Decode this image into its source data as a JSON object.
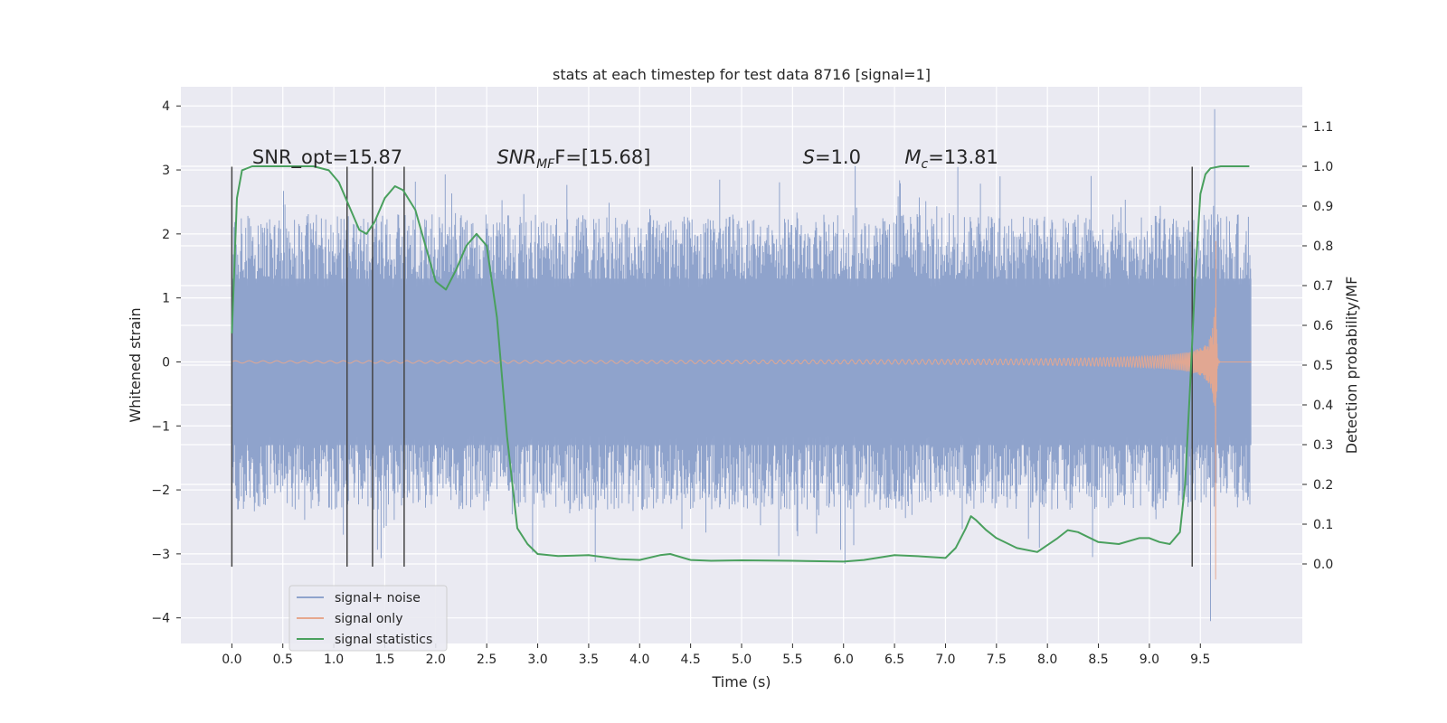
{
  "chart_data": {
    "type": "line",
    "title": "stats at each timestep for test data 8716 [signal=1]",
    "xlabel": "Time (s)",
    "ylabel": "Whitened strain",
    "y2label": "Detection probability/MF",
    "xlim": [
      -0.5,
      10.5
    ],
    "ylim": [
      -4.4,
      4.3
    ],
    "y2lim": [
      -0.2,
      1.2
    ],
    "x_ticks": [
      0.0,
      0.5,
      1.0,
      1.5,
      2.0,
      2.5,
      3.0,
      3.5,
      4.0,
      4.5,
      5.0,
      5.5,
      6.0,
      6.5,
      7.0,
      7.5,
      8.0,
      8.5,
      9.0,
      9.5
    ],
    "x_tick_labels": [
      "0.0",
      "0.5",
      "1.0",
      "1.5",
      "2.0",
      "2.5",
      "3.0",
      "3.5",
      "4.0",
      "4.5",
      "5.0",
      "5.5",
      "6.0",
      "6.5",
      "7.0",
      "7.5",
      "8.0",
      "8.5",
      "9.0",
      "9.5"
    ],
    "y_ticks": [
      -4,
      -3,
      -2,
      -1,
      0,
      1,
      2,
      3,
      4
    ],
    "y_tick_labels": [
      "−4",
      "−3",
      "−2",
      "−1",
      "0",
      "1",
      "2",
      "3",
      "4"
    ],
    "y2_ticks": [
      0.0,
      0.1,
      0.2,
      0.3,
      0.4,
      0.5,
      0.6,
      0.7,
      0.8,
      0.9,
      1.0,
      1.1
    ],
    "y2_tick_labels": [
      "0.0",
      "0.1",
      "0.2",
      "0.3",
      "0.4",
      "0.5",
      "0.6",
      "0.7",
      "0.8",
      "0.9",
      "1.0",
      "1.1"
    ],
    "grid": true,
    "legend_position": "lower-left",
    "annotations": [
      {
        "x": 0.2,
        "y": 3.1,
        "text": "SNR_opt=15.87"
      },
      {
        "x": 2.6,
        "y": 3.1,
        "main": "SNR",
        "sub": "MF",
        "rest": "F=[15.68]"
      },
      {
        "x": 5.6,
        "y": 3.1,
        "main": "S",
        "sub": "",
        "rest": "=1.0"
      },
      {
        "x": 6.6,
        "y": 3.1,
        "main": "M",
        "sub": "c",
        "rest": "=13.81"
      }
    ],
    "vlines": {
      "x": [
        0.0,
        1.13,
        1.38,
        1.69,
        9.42
      ],
      "ymin": -3.2,
      "ymax": 3.05
    },
    "series": [
      {
        "name": "signal+ noise",
        "color": "#8fa3cc",
        "kind": "noise-band",
        "x_range": [
          0.0,
          10.0
        ],
        "inner_amplitude": 1.3,
        "outer_amplitude_typical": 2.1,
        "peak_min": -4.05,
        "peak_max": 3.95
      },
      {
        "name": "signal only",
        "color": "#e6a88e",
        "kind": "chirp",
        "x_range": [
          0.0,
          10.0
        ],
        "merger_time": 9.65,
        "peak_amplitude": 2.4,
        "ringdown_min": -3.4
      },
      {
        "name": "signal statistics",
        "color": "#4aa05e",
        "kind": "line",
        "x": [
          0.0,
          0.05,
          0.1,
          0.2,
          0.4,
          0.6,
          0.8,
          0.95,
          1.05,
          1.15,
          1.25,
          1.32,
          1.4,
          1.5,
          1.6,
          1.68,
          1.8,
          1.9,
          2.0,
          2.1,
          2.2,
          2.3,
          2.4,
          2.5,
          2.6,
          2.7,
          2.8,
          2.9,
          3.0,
          3.2,
          3.5,
          3.8,
          4.0,
          4.2,
          4.3,
          4.5,
          4.7,
          5.0,
          5.5,
          6.0,
          6.2,
          6.5,
          6.7,
          7.0,
          7.1,
          7.2,
          7.25,
          7.3,
          7.4,
          7.5,
          7.7,
          7.9,
          8.1,
          8.2,
          8.3,
          8.5,
          8.7,
          8.9,
          9.0,
          9.1,
          9.2,
          9.3,
          9.35,
          9.4,
          9.45,
          9.5,
          9.55,
          9.6,
          9.7,
          9.8,
          9.98
        ],
        "y": [
          0.58,
          0.92,
          0.99,
          1.0,
          1.0,
          1.0,
          1.0,
          0.99,
          0.96,
          0.9,
          0.84,
          0.83,
          0.86,
          0.92,
          0.95,
          0.94,
          0.89,
          0.8,
          0.71,
          0.69,
          0.74,
          0.8,
          0.83,
          0.8,
          0.62,
          0.32,
          0.09,
          0.05,
          0.025,
          0.02,
          0.022,
          0.012,
          0.01,
          0.022,
          0.025,
          0.01,
          0.008,
          0.009,
          0.008,
          0.006,
          0.01,
          0.022,
          0.02,
          0.015,
          0.04,
          0.09,
          0.12,
          0.11,
          0.085,
          0.065,
          0.04,
          0.03,
          0.065,
          0.085,
          0.08,
          0.055,
          0.05,
          0.065,
          0.065,
          0.055,
          0.05,
          0.08,
          0.2,
          0.45,
          0.72,
          0.93,
          0.98,
          0.995,
          1.0,
          1.0,
          1.0
        ]
      }
    ]
  }
}
